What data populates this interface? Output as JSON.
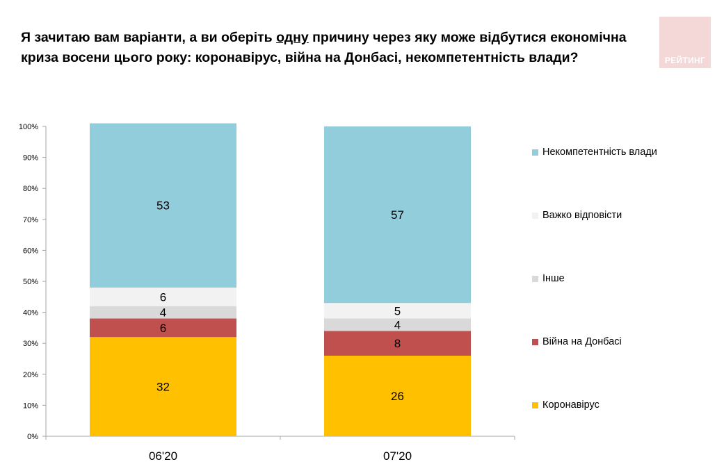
{
  "title": {
    "part1": "Я зачитаю вам варіанти, а ви оберіть ",
    "underlined": "одну",
    "part2": " причину через яку може відбутися економічна криза восени цього року: коронавірус, війна на Донбасі, некомпетентність влади?"
  },
  "logo_text": "РЕЙТИНГ",
  "colors": {
    "coronavirus": "#FFC000",
    "war": "#C0504D",
    "other": "#D9D9D9",
    "hard": "#F2F2F2",
    "incompetence": "#92CDDC"
  },
  "chart_data": {
    "type": "stacked-bar",
    "categories": [
      "06'20",
      "07'20"
    ],
    "series": [
      {
        "name": "Коронавірус",
        "key": "coronavirus",
        "values": [
          32,
          26
        ]
      },
      {
        "name": "Війна на Донбасі",
        "key": "war",
        "values": [
          6,
          8
        ]
      },
      {
        "name": "Інше",
        "key": "other",
        "values": [
          4,
          4
        ]
      },
      {
        "name": "Важко відповісти",
        "key": "hard",
        "values": [
          6,
          5
        ]
      },
      {
        "name": "Некомпетентність влади",
        "key": "incompetence",
        "values": [
          53,
          57
        ]
      }
    ],
    "ylim": [
      0,
      100
    ],
    "yticks": [
      "0%",
      "10%",
      "20%",
      "30%",
      "40%",
      "50%",
      "60%",
      "70%",
      "80%",
      "90%",
      "100%"
    ],
    "legend_order": [
      "incompetence",
      "hard",
      "other",
      "war",
      "coronavirus"
    ],
    "legend_position": "right"
  }
}
